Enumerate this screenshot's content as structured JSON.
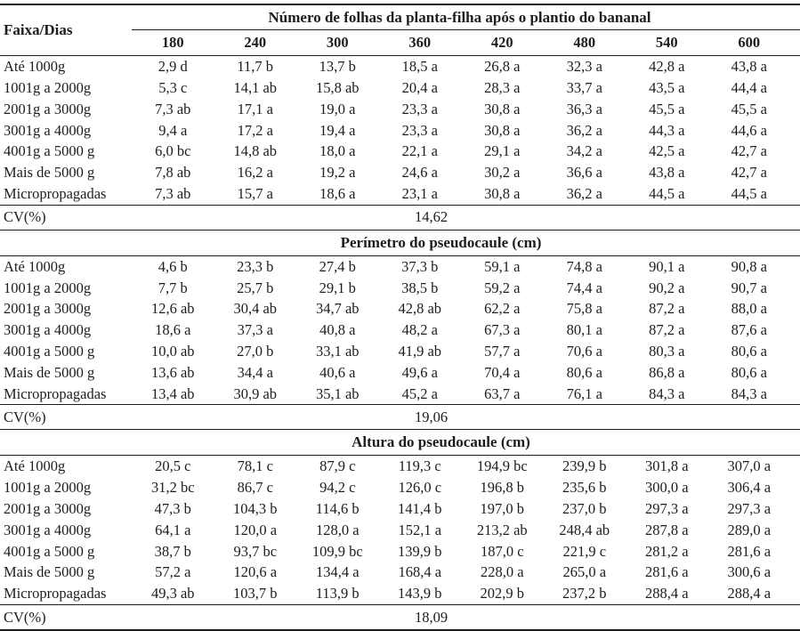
{
  "colors": {
    "text": "#1d1d1d",
    "background": "#ffffff"
  },
  "table": {
    "row_header_label": "Faixa/Dias",
    "col_headers": [
      "180",
      "240",
      "300",
      "360",
      "420",
      "480",
      "540",
      "600"
    ],
    "sections": [
      {
        "title": "Número de folhas da planta-filha após o plantio do bananal",
        "rows": [
          {
            "label": "Até 1000g",
            "values": [
              "2,9 d",
              "11,7 b",
              "13,7 b",
              "18,5 a",
              "26,8 a",
              "32,3 a",
              "42,8 a",
              "43,8 a"
            ]
          },
          {
            "label": "1001g a 2000g",
            "values": [
              "5,3 c",
              "14,1 ab",
              "15,8 ab",
              "20,4 a",
              "28,3 a",
              "33,7 a",
              "43,5 a",
              "44,4 a"
            ]
          },
          {
            "label": "2001g a 3000g",
            "values": [
              "7,3 ab",
              "17,1 a",
              "19,0 a",
              "23,3 a",
              "30,8 a",
              "36,3 a",
              "45,5 a",
              "45,5 a"
            ]
          },
          {
            "label": "3001g a 4000g",
            "values": [
              "9,4 a",
              "17,2 a",
              "19,4 a",
              "23,3 a",
              "30,8 a",
              "36,2 a",
              "44,3 a",
              "44,6 a"
            ]
          },
          {
            "label": "4001g a 5000 g",
            "values": [
              "6,0 bc",
              "14,8 ab",
              "18,0 a",
              "22,1 a",
              "29,1 a",
              "34,2 a",
              "42,5 a",
              "42,7 a"
            ]
          },
          {
            "label": "Mais de 5000 g",
            "values": [
              "7,8 ab",
              "16,2 a",
              "19,2 a",
              "24,6 a",
              "30,2 a",
              "36,6 a",
              "43,8 a",
              "42,7 a"
            ]
          },
          {
            "label": "Micropropagadas",
            "values": [
              "7,3 ab",
              "15,7 a",
              "18,6 a",
              "23,1 a",
              "30,8 a",
              "36,2 a",
              "44,5 a",
              "44,5 a"
            ]
          }
        ],
        "cv_label": "CV(%)",
        "cv_value": "14,62"
      },
      {
        "title": "Perímetro do pseudocaule (cm)",
        "rows": [
          {
            "label": "Até 1000g",
            "values": [
              "4,6 b",
              "23,3 b",
              "27,4 b",
              "37,3 b",
              "59,1 a",
              "74,8 a",
              "90,1 a",
              "90,8 a"
            ]
          },
          {
            "label": "1001g a 2000g",
            "values": [
              "7,7 b",
              "25,7 b",
              "29,1 b",
              "38,5 b",
              "59,2 a",
              "74,4 a",
              "90,2 a",
              "90,7 a"
            ]
          },
          {
            "label": "2001g a 3000g",
            "values": [
              "12,6 ab",
              "30,4 ab",
              "34,7 ab",
              "42,8 ab",
              "62,2 a",
              "75,8 a",
              "87,2 a",
              "88,0 a"
            ]
          },
          {
            "label": "3001g a 4000g",
            "values": [
              "18,6 a",
              "37,3 a",
              "40,8 a",
              "48,2 a",
              "67,3 a",
              "80,1 a",
              "87,2 a",
              "87,6 a"
            ]
          },
          {
            "label": "4001g a 5000 g",
            "values": [
              "10,0 ab",
              "27,0 b",
              "33,1 ab",
              "41,9 ab",
              "57,7 a",
              "70,6 a",
              "80,3 a",
              "80,6 a"
            ]
          },
          {
            "label": "Mais de 5000 g",
            "values": [
              "13,6 ab",
              "34,4 a",
              "40,6 a",
              "49,6 a",
              "70,4 a",
              "80,6 a",
              "86,8 a",
              "80,6 a"
            ]
          },
          {
            "label": "Micropropagadas",
            "values": [
              "13,4 ab",
              "30,9 ab",
              "35,1 ab",
              "45,2 a",
              "63,7 a",
              "76,1 a",
              "84,3 a",
              "84,3 a"
            ]
          }
        ],
        "cv_label": "CV(%)",
        "cv_value": "19,06"
      },
      {
        "title": "Altura do pseudocaule (cm)",
        "rows": [
          {
            "label": "Até 1000g",
            "values": [
              "20,5 c",
              "78,1 c",
              "87,9 c",
              "119,3 c",
              "194,9 bc",
              "239,9 b",
              "301,8 a",
              "307,0 a"
            ]
          },
          {
            "label": "1001g a 2000g",
            "values": [
              "31,2 bc",
              "86,7 c",
              "94,2 c",
              "126,0 c",
              "196,8 b",
              "235,6 b",
              "300,0 a",
              "306,4 a"
            ]
          },
          {
            "label": "2001g a 3000g",
            "values": [
              "47,3 b",
              "104,3 b",
              "114,6 b",
              "141,4 b",
              "197,0 b",
              "237,0 b",
              "297,3 a",
              "297,3 a"
            ]
          },
          {
            "label": "3001g a 4000g",
            "values": [
              "64,1 a",
              "120,0 a",
              "128,0 a",
              "152,1 a",
              "213,2 ab",
              "248,4 ab",
              "287,8 a",
              "289,0 a"
            ]
          },
          {
            "label": "4001g a 5000 g",
            "values": [
              "38,7 b",
              "93,7 bc",
              "109,9 bc",
              "139,9 b",
              "187,0 c",
              "221,9 c",
              "281,2 a",
              "281,6 a"
            ]
          },
          {
            "label": "Mais de 5000 g",
            "values": [
              "57,2 a",
              "120,6 a",
              "134,4 a",
              "168,4 a",
              "228,0 a",
              "265,0 a",
              "281,6 a",
              "300,6 a"
            ]
          },
          {
            "label": "Micropropagadas",
            "values": [
              "49,3 ab",
              "103,7 b",
              "113,9 b",
              "143,9 b",
              "202,9 b",
              "237,2 b",
              "288,4 a",
              "288,4 a"
            ]
          }
        ],
        "cv_label": "CV(%)",
        "cv_value": "18,09"
      }
    ]
  }
}
